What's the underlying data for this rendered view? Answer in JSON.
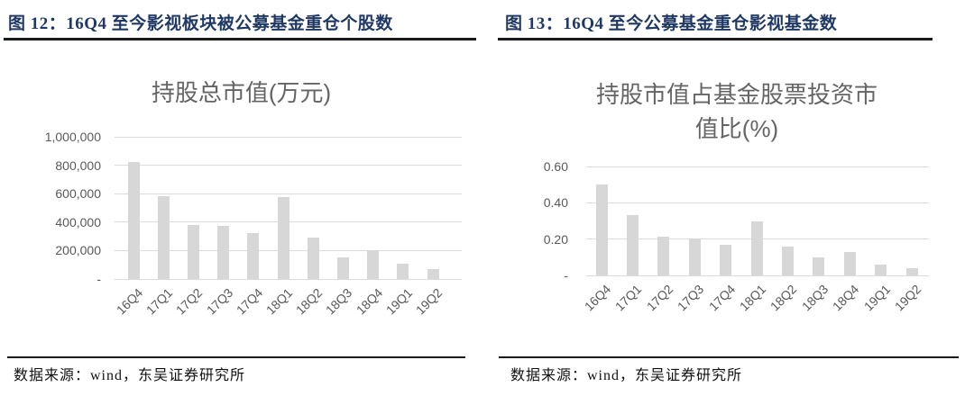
{
  "figures": [
    {
      "caption": "图 12：16Q4 至今影视板块被公募基金重仓个股数",
      "source": "数据来源：wind，东吴证券研究所"
    },
    {
      "caption": "图 13：16Q4 至今公募基金重仓影视基金数",
      "source": "数据来源：wind，东吴证券研究所"
    }
  ],
  "chart_data": [
    {
      "type": "bar",
      "title": "持股总市值(万元)",
      "title_lines": [
        "持股总市值(万元)"
      ],
      "categories": [
        "16Q4",
        "17Q1",
        "17Q2",
        "17Q3",
        "17Q4",
        "18Q1",
        "18Q2",
        "18Q3",
        "18Q4",
        "19Q1",
        "19Q2"
      ],
      "values": [
        820000,
        585000,
        380000,
        375000,
        320000,
        575000,
        290000,
        155000,
        200000,
        110000,
        70000
      ],
      "xlabel": "",
      "ylabel": "",
      "ylim": [
        0,
        1000000
      ],
      "yticks": [
        {
          "value": 0,
          "label": "-"
        },
        {
          "value": 200000,
          "label": "200,000"
        },
        {
          "value": 400000,
          "label": "400,000"
        },
        {
          "value": 600000,
          "label": "600,000"
        },
        {
          "value": 800000,
          "label": "800,000"
        },
        {
          "value": 1000000,
          "label": "1,000,000"
        }
      ],
      "grid": true,
      "legend": "none",
      "bar_color": "#d7d7d7"
    },
    {
      "type": "bar",
      "title": "持股市值占基金股票投资市值比(%)",
      "title_lines": [
        "持股市值占基金股票投资市",
        "值比(%)"
      ],
      "categories": [
        "16Q4",
        "17Q1",
        "17Q2",
        "17Q3",
        "17Q4",
        "18Q1",
        "18Q2",
        "18Q3",
        "18Q4",
        "19Q1",
        "19Q2"
      ],
      "values": [
        0.5,
        0.33,
        0.215,
        0.205,
        0.17,
        0.3,
        0.16,
        0.1,
        0.13,
        0.06,
        0.04
      ],
      "xlabel": "",
      "ylabel": "",
      "ylim": [
        0,
        0.6
      ],
      "yticks": [
        {
          "value": 0,
          "label": "-"
        },
        {
          "value": 0.2,
          "label": "0.20"
        },
        {
          "value": 0.4,
          "label": "0.40"
        },
        {
          "value": 0.6,
          "label": "0.60"
        }
      ],
      "grid": true,
      "legend": "none",
      "bar_color": "#d7d7d7"
    }
  ],
  "colors": {
    "header_text": "#1f3864",
    "rule_line": "#1a1a1a",
    "bar_fill": "#d7d7d7",
    "gridline": "#dbdbdb",
    "axis_text": "#595959",
    "chart_title_text": "#646464",
    "source_text": "#111111",
    "background": "#ffffff"
  }
}
